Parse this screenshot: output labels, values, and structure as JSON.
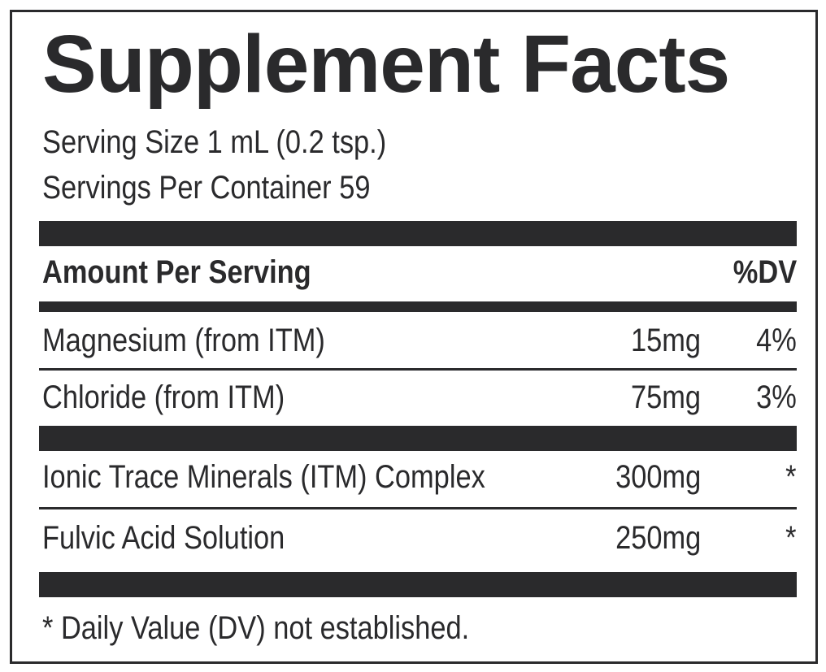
{
  "label": {
    "title": "Supplement Facts",
    "serving_size": "Serving Size 1 mL (0.2 tsp.)",
    "servings_per_container": "Servings Per Container 59",
    "header": {
      "amount_label": "Amount Per Serving",
      "dv_label": "%DV"
    },
    "nutrients": [
      {
        "name": "Magnesium (from ITM)",
        "amount": "15mg",
        "dv": "4%"
      },
      {
        "name": "Chloride (from ITM)",
        "amount": "75mg",
        "dv": "3%"
      }
    ],
    "other_ingredients": [
      {
        "name": "Ionic Trace Minerals (ITM) Complex",
        "amount": "300mg",
        "dv": "*"
      },
      {
        "name": "Fulvic Acid Solution",
        "amount": "250mg",
        "dv": "*"
      }
    ],
    "footnote": "* Daily Value (DV) not established."
  },
  "colors": {
    "ink": "#2a2a2c",
    "background": "#ffffff"
  }
}
